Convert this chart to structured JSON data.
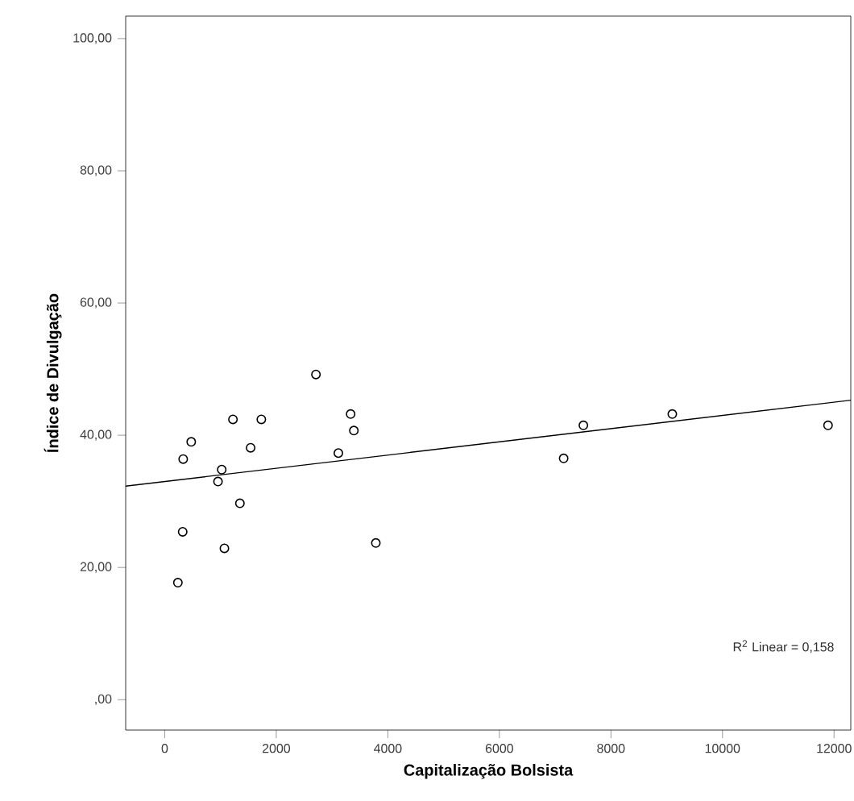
{
  "chart_data": {
    "type": "scatter",
    "xlabel": "Capitalização Bolsista",
    "ylabel": "Índice de Divulgação",
    "xlim": [
      -700,
      12300
    ],
    "ylim": [
      -4.6,
      103.4
    ],
    "xticks": [
      0,
      2000,
      4000,
      6000,
      8000,
      10000,
      12000
    ],
    "yticks": [
      {
        "value": 0,
        "label": ",00"
      },
      {
        "value": 20,
        "label": "20,00"
      },
      {
        "value": 40,
        "label": "40,00"
      },
      {
        "value": 60,
        "label": "60,00"
      },
      {
        "value": 80,
        "label": "80,00"
      },
      {
        "value": 100,
        "label": "100,00"
      }
    ],
    "grid": false,
    "annotations": [
      "R$^{2}$ Linear = 0,158"
    ],
    "series": [
      {
        "marker": "circle",
        "color": "#000000",
        "x": [
          2711,
          3333,
          3391,
          1223,
          1732,
          475,
          331,
          1540,
          3113,
          1022,
          955,
          1348,
          322,
          3785,
          1070,
          236,
          7152,
          7506,
          9100,
          11892
        ],
        "values": [
          49.2,
          43.2,
          40.7,
          42.4,
          42.4,
          39.0,
          36.4,
          38.1,
          37.3,
          34.8,
          33.0,
          29.7,
          25.4,
          23.7,
          22.9,
          17.7,
          36.5,
          41.5,
          43.2,
          41.5
        ]
      },
      {
        "type": "line",
        "color": "#000000",
        "marker": "none",
        "line_style": "solid",
        "x": [
          -700,
          12300
        ],
        "values": [
          32.3,
          45.3
        ]
      }
    ]
  }
}
